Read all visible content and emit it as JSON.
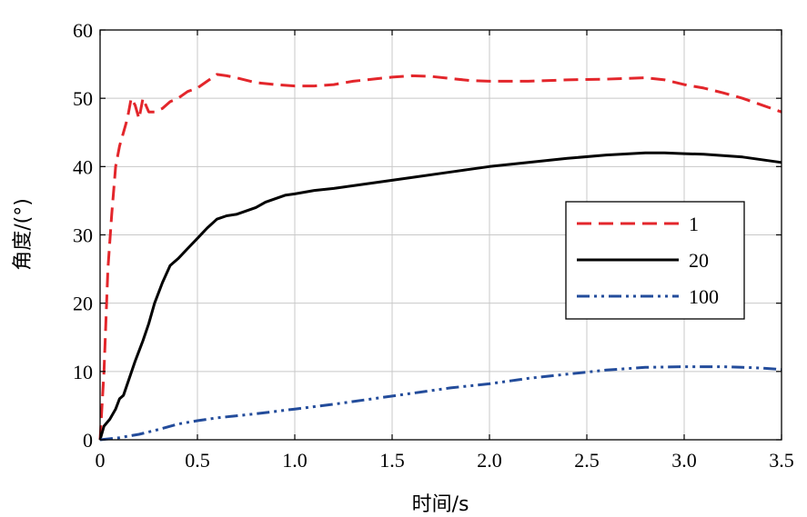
{
  "chart_data": {
    "type": "line",
    "xlabel": "时间/s",
    "ylabel": "角度/(°)",
    "xlim": [
      0,
      3.5
    ],
    "ylim": [
      0,
      60
    ],
    "xticks": [
      0,
      0.5,
      1.0,
      1.5,
      2.0,
      2.5,
      3.0,
      3.5
    ],
    "xtick_labels": [
      "0",
      "0.5",
      "1.0",
      "1.5",
      "2.0",
      "2.5",
      "3.0",
      "3.5"
    ],
    "yticks": [
      0,
      10,
      20,
      30,
      40,
      50,
      60
    ],
    "ytick_labels": [
      "0",
      "10",
      "20",
      "30",
      "40",
      "50",
      "60"
    ],
    "grid": true,
    "legend_position": "center-right",
    "series": [
      {
        "name": "1",
        "color": "#e3262b",
        "style": "dashed",
        "x": [
          0,
          0.02,
          0.04,
          0.06,
          0.08,
          0.1,
          0.12,
          0.14,
          0.16,
          0.18,
          0.2,
          0.22,
          0.25,
          0.28,
          0.32,
          0.36,
          0.4,
          0.45,
          0.5,
          0.55,
          0.6,
          0.65,
          0.7,
          0.8,
          0.9,
          1.0,
          1.1,
          1.2,
          1.3,
          1.4,
          1.5,
          1.6,
          1.7,
          1.8,
          1.9,
          2.0,
          2.2,
          2.4,
          2.6,
          2.8,
          2.9,
          3.0,
          3.1,
          3.2,
          3.3,
          3.4,
          3.5
        ],
        "values": [
          0,
          10,
          25,
          33,
          40,
          43,
          45,
          47,
          50,
          49,
          47,
          50,
          48,
          48,
          48.5,
          49.5,
          50,
          51,
          51.5,
          52.5,
          53.5,
          53.3,
          53,
          52.3,
          52,
          51.8,
          51.8,
          52,
          52.5,
          52.8,
          53.1,
          53.3,
          53.2,
          52.9,
          52.6,
          52.5,
          52.5,
          52.7,
          52.8,
          53,
          52.7,
          52,
          51.5,
          50.8,
          50,
          49,
          48
        ]
      },
      {
        "name": "20",
        "color": "#000000",
        "style": "solid",
        "x": [
          0,
          0.02,
          0.05,
          0.08,
          0.1,
          0.12,
          0.15,
          0.18,
          0.2,
          0.22,
          0.25,
          0.28,
          0.32,
          0.36,
          0.4,
          0.45,
          0.5,
          0.55,
          0.6,
          0.65,
          0.7,
          0.75,
          0.8,
          0.85,
          0.9,
          0.95,
          1.0,
          1.1,
          1.2,
          1.3,
          1.4,
          1.5,
          1.6,
          1.8,
          2.0,
          2.2,
          2.4,
          2.6,
          2.8,
          2.9,
          3.0,
          3.1,
          3.2,
          3.3,
          3.4,
          3.5
        ],
        "values": [
          0,
          2,
          3,
          4.5,
          6,
          6.5,
          9,
          11.5,
          13,
          14.5,
          17,
          20,
          23,
          25.5,
          26.5,
          28,
          29.5,
          31,
          32.3,
          32.8,
          33,
          33.5,
          34,
          34.8,
          35.3,
          35.8,
          36,
          36.5,
          36.8,
          37.2,
          37.6,
          38,
          38.4,
          39.2,
          40,
          40.6,
          41.2,
          41.7,
          42,
          42,
          41.9,
          41.8,
          41.6,
          41.4,
          41,
          40.6
        ]
      },
      {
        "name": "100",
        "color": "#234c9b",
        "style": "dashdotdot",
        "x": [
          0,
          0.1,
          0.2,
          0.3,
          0.4,
          0.5,
          0.6,
          0.8,
          1.0,
          1.2,
          1.4,
          1.6,
          1.8,
          2.0,
          2.2,
          2.4,
          2.6,
          2.8,
          3.0,
          3.1,
          3.2,
          3.3,
          3.4,
          3.5
        ],
        "values": [
          0,
          0.3,
          0.8,
          1.5,
          2.3,
          2.8,
          3.2,
          3.8,
          4.5,
          5.2,
          6,
          6.8,
          7.6,
          8.2,
          9,
          9.6,
          10.2,
          10.6,
          10.7,
          10.7,
          10.7,
          10.6,
          10.5,
          10.3
        ]
      }
    ]
  }
}
